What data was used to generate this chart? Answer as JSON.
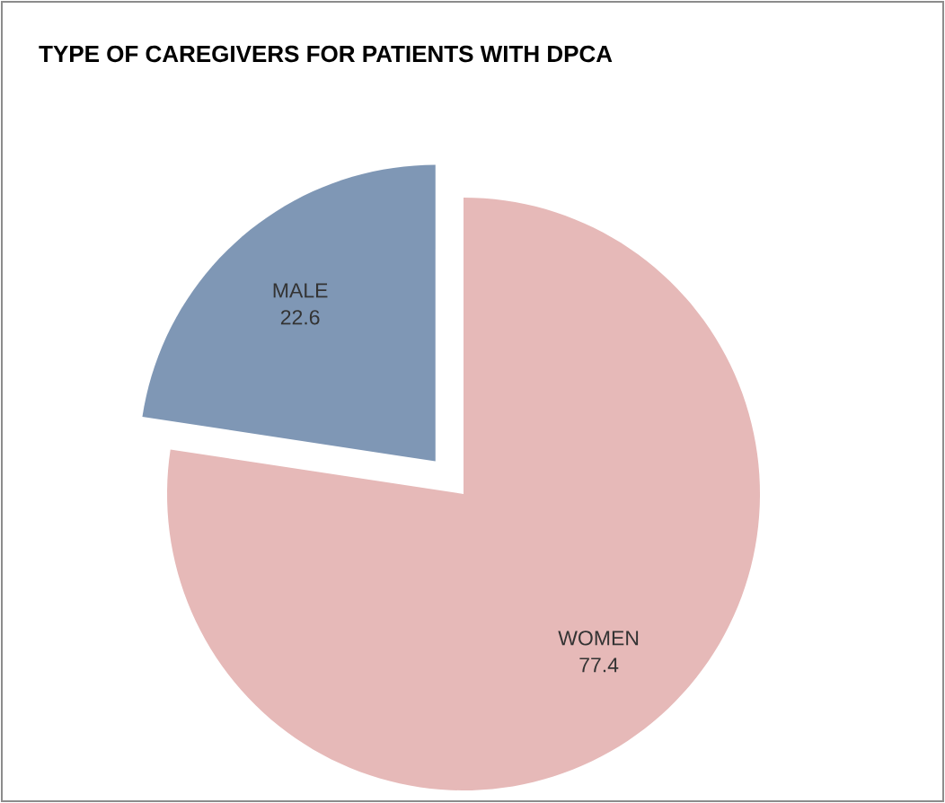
{
  "chart_data": {
    "type": "pie",
    "title": "TYPE OF CAREGIVERS FOR PATIENTS WITH DPCA",
    "categories": [
      "WOMEN",
      "MALE"
    ],
    "values": [
      77.4,
      22.6
    ],
    "colors": [
      "#e6b9b8",
      "#7f97b5"
    ],
    "data_labels": true
  }
}
